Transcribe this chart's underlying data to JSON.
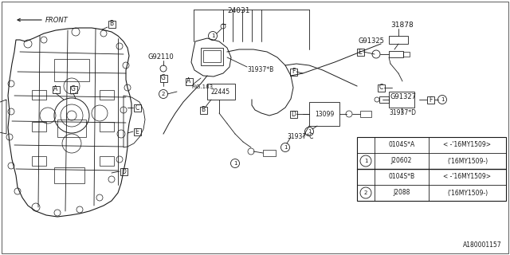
{
  "bg_color": "#ffffff",
  "line_color": "#1a1a1a",
  "text_color": "#1a1a1a",
  "part_number_top": "24031",
  "part_G92110": "G92110",
  "part_31878": "31878",
  "part_G91325": "G91325",
  "part_31937B": "31937*B",
  "part_22445": "22445",
  "part_FIG183": "FIG.183",
  "part_13099": "13099",
  "part_31937C": "31937*C",
  "part_G91327": "G91327",
  "part_31937D": "31937*D",
  "part_FRONT": "FRONT",
  "doc_number": "A180001157",
  "table_rows": [
    [
      "0104S*A",
      "< -'16MY1509>"
    ],
    [
      "J20602",
      "('16MY1509-)"
    ],
    [
      "0104S*B",
      "< -'16MY1509>"
    ],
    [
      "J2088",
      "('16MY1509-)"
    ]
  ],
  "label_A": "A",
  "label_B": "B",
  "label_C": "C",
  "label_D": "D",
  "label_E": "E",
  "label_F": "F",
  "label_G": "G",
  "font_size_label": 6.0,
  "font_size_part": 6.5,
  "font_size_small": 5.5
}
